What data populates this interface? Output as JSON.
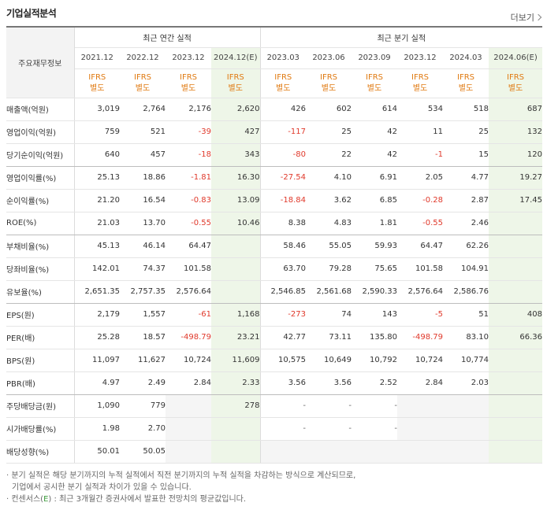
{
  "title": "기업실적분석",
  "more_label": "더보기",
  "header": {
    "item_label": "주요재무정보",
    "annual_label": "최근 연간 실적",
    "quarter_label": "최근 분기 실적",
    "annual_periods": [
      "2021.12",
      "2022.12",
      "2023.12",
      "2024.12(E)"
    ],
    "quarter_periods": [
      "2023.03",
      "2023.06",
      "2023.09",
      "2023.12",
      "2024.03",
      "2024.06(E)"
    ],
    "ifrs_top": "IFRS",
    "ifrs_bottom": "별도"
  },
  "rows": [
    {
      "label": "매출액(억원)",
      "annual": [
        "3,019",
        "2,764",
        "2,176",
        "2,620"
      ],
      "quarter": [
        "426",
        "602",
        "614",
        "534",
        "518",
        "687"
      ]
    },
    {
      "label": "영업이익(억원)",
      "annual": [
        "759",
        "521",
        "-39",
        "427"
      ],
      "quarter": [
        "-117",
        "25",
        "42",
        "11",
        "25",
        "132"
      ]
    },
    {
      "label": "당기순이익(억원)",
      "annual": [
        "640",
        "457",
        "-18",
        "343"
      ],
      "quarter": [
        "-80",
        "22",
        "42",
        "-1",
        "15",
        "120"
      ],
      "group_end": true
    },
    {
      "label": "영업이익률(%)",
      "annual": [
        "25.13",
        "18.86",
        "-1.81",
        "16.30"
      ],
      "quarter": [
        "-27.54",
        "4.10",
        "6.91",
        "2.05",
        "4.77",
        "19.27"
      ]
    },
    {
      "label": "순이익률(%)",
      "annual": [
        "21.20",
        "16.54",
        "-0.83",
        "13.09"
      ],
      "quarter": [
        "-18.84",
        "3.62",
        "6.85",
        "-0.28",
        "2.87",
        "17.45"
      ]
    },
    {
      "label": "ROE(%)",
      "annual": [
        "21.03",
        "13.70",
        "-0.55",
        "10.46"
      ],
      "quarter": [
        "8.38",
        "4.83",
        "1.81",
        "-0.55",
        "2.46",
        ""
      ],
      "group_end": true
    },
    {
      "label": "부채비율(%)",
      "annual": [
        "45.13",
        "46.14",
        "64.47",
        ""
      ],
      "quarter": [
        "58.46",
        "55.05",
        "59.93",
        "64.47",
        "62.26",
        ""
      ]
    },
    {
      "label": "당좌비율(%)",
      "annual": [
        "142.01",
        "74.37",
        "101.58",
        ""
      ],
      "quarter": [
        "63.70",
        "79.28",
        "75.65",
        "101.58",
        "104.91",
        ""
      ]
    },
    {
      "label": "유보율(%)",
      "annual": [
        "2,651.35",
        "2,757.35",
        "2,576.64",
        ""
      ],
      "quarter": [
        "2,546.85",
        "2,561.68",
        "2,590.33",
        "2,576.64",
        "2,586.76",
        ""
      ],
      "group_end": true
    },
    {
      "label": "EPS(원)",
      "annual": [
        "2,179",
        "1,557",
        "-61",
        "1,168"
      ],
      "quarter": [
        "-273",
        "74",
        "143",
        "-5",
        "51",
        "408"
      ]
    },
    {
      "label": "PER(배)",
      "annual": [
        "25.28",
        "18.57",
        "-498.79",
        "23.21"
      ],
      "quarter": [
        "42.77",
        "73.11",
        "135.80",
        "-498.79",
        "83.10",
        "66.36"
      ]
    },
    {
      "label": "BPS(원)",
      "annual": [
        "11,097",
        "11,627",
        "10,724",
        "11,609"
      ],
      "quarter": [
        "10,575",
        "10,649",
        "10,792",
        "10,724",
        "10,774",
        ""
      ]
    },
    {
      "label": "PBR(배)",
      "annual": [
        "4.97",
        "2.49",
        "2.84",
        "2.33"
      ],
      "quarter": [
        "3.56",
        "3.56",
        "2.52",
        "2.84",
        "2.03",
        ""
      ],
      "group_end": true
    },
    {
      "label": "주당배당금(원)",
      "annual": [
        "1,090",
        "779",
        "",
        "278"
      ],
      "quarter": [
        "-",
        "-",
        "-",
        "",
        "",
        ""
      ]
    },
    {
      "label": "시가배당률(%)",
      "annual": [
        "1.98",
        "2.70",
        "",
        ""
      ],
      "quarter": [
        "-",
        "-",
        "-",
        "",
        "",
        ""
      ]
    },
    {
      "label": "배당성향(%)",
      "annual": [
        "50.01",
        "50.05",
        "",
        ""
      ],
      "quarter": [
        "",
        "",
        "",
        "",
        "",
        ""
      ]
    }
  ],
  "notes": {
    "line1": "· 분기 실적은 해당 분기까지의 누적 실적에서 직전 분기까지의 누적 실적을 차감하는 방식으로 계산되므로,",
    "line2": "기업에서 공시한 분기 실적과 차이가 있을 수 있습니다.",
    "line3_prefix": "· 컨센서스(",
    "line3_e": "E",
    "line3_suffix": ") : 최근 3개월간 증권사에서 발표한 전망치의 평균값입니다."
  },
  "colors": {
    "ifrs": "#e07a12",
    "negative": "#e0392b",
    "estimate_bg": "#eef6e8",
    "estimate_mark": "#3a9b3a"
  }
}
